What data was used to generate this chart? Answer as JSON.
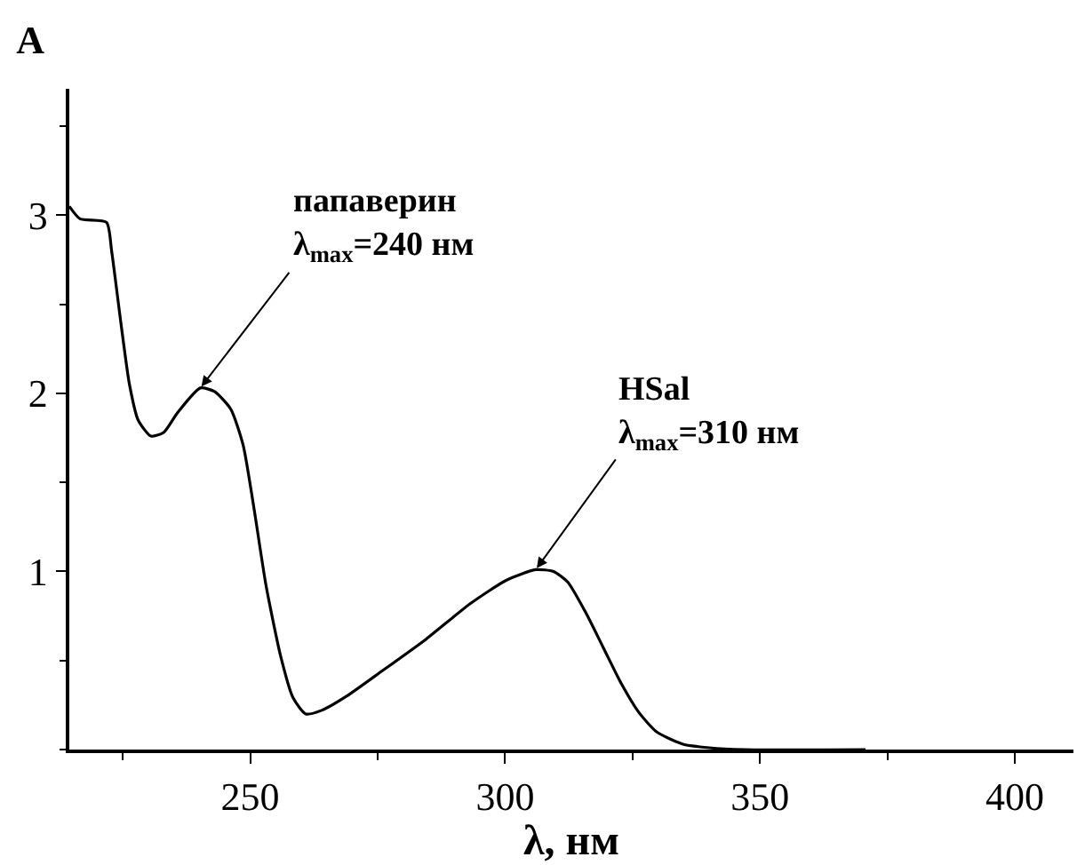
{
  "chart_data": {
    "type": "line",
    "title": "A",
    "xlabel": "λ, нм",
    "x": [
      214.5,
      216.6,
      221.8,
      222.8,
      224.6,
      226.3,
      228,
      230.5,
      233,
      235.7,
      240.2,
      243,
      246.2,
      248.6,
      250.7,
      253.1,
      256,
      258.4,
      260.9,
      264,
      268.9,
      275.8,
      284.5,
      293.2,
      300.2,
      306,
      309.5,
      312.3,
      315.8,
      319.3,
      322.8,
      326.2,
      329.7,
      334.9,
      340.1,
      347,
      370.7
    ],
    "series": [
      {
        "color": "#000000",
        "values": [
          3.05,
          2.98,
          2.96,
          2.8,
          2.4,
          2.05,
          1.85,
          1.76,
          1.78,
          1.89,
          2.03,
          2.01,
          1.91,
          1.71,
          1.36,
          0.92,
          0.52,
          0.29,
          0.2,
          0.22,
          0.3,
          0.44,
          0.62,
          0.82,
          0.95,
          1.01,
          1.0,
          0.94,
          0.77,
          0.57,
          0.37,
          0.21,
          0.1,
          0.03,
          0.01,
          0,
          0
        ]
      }
    ],
    "xlim": [
      214.5,
      411.5
    ],
    "ylim": [
      0,
      3.71
    ],
    "xticks": [
      250,
      300,
      350,
      400
    ],
    "yticks": [
      1,
      2,
      3
    ],
    "marker": "none",
    "line_style": "solid",
    "annotations": [
      {
        "text": "папаверин\nλ$_{max}$=240 нм",
        "x": 240.2,
        "y": 2.03
      },
      {
        "text": "HSal\nλ$_{max}$=310 нм",
        "x": 306,
        "y": 1.01
      }
    ]
  }
}
